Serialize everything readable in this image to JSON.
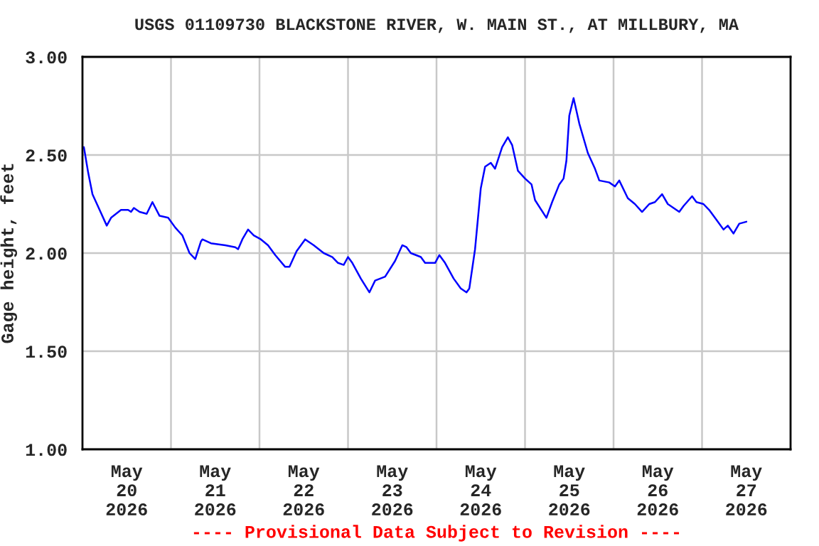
{
  "chart_data": {
    "type": "line",
    "title": "USGS 01109730 BLACKSTONE RIVER, W. MAIN ST., AT MILLBURY, MA",
    "ylabel": "Gage height, feet",
    "annotations": [
      "---- Provisional Data Subject to Revision ----"
    ],
    "x": [
      "2026-05-20T00:23",
      "2026-05-20T01:33",
      "2026-05-20T02:43",
      "2026-05-20T04:39",
      "2026-05-20T06:35",
      "2026-05-20T07:45",
      "2026-05-20T10:27",
      "2026-05-20T12:23",
      "2026-05-20T13:10",
      "2026-05-20T13:56",
      "2026-05-20T15:29",
      "2026-05-20T17:25",
      "2026-05-20T18:58",
      "2026-05-20T20:54",
      "2026-05-20T23:14",
      "2026-05-21T01:10",
      "2026-05-21T03:06",
      "2026-05-21T05:02",
      "2026-05-21T06:35",
      "2026-05-21T08:08",
      "2026-05-21T08:31",
      "2026-05-21T10:50",
      "2026-05-21T14:43",
      "2026-05-21T17:25",
      "2026-05-21T18:12",
      "2026-05-21T19:21",
      "2026-05-21T20:54",
      "2026-05-21T22:27",
      "2026-05-22T00:23",
      "2026-05-22T02:19",
      "2026-05-22T04:16",
      "2026-05-22T06:58",
      "2026-05-22T08:08",
      "2026-05-22T10:04",
      "2026-05-22T12:23",
      "2026-05-22T14:43",
      "2026-05-22T17:25",
      "2026-05-22T19:45",
      "2026-05-22T21:17",
      "2026-05-22T22:50",
      "2026-05-23T00:00",
      "2026-05-23T01:10",
      "2026-05-23T03:29",
      "2026-05-23T05:48",
      "2026-05-23T07:21",
      "2026-05-23T10:04",
      "2026-05-23T12:46",
      "2026-05-23T14:43",
      "2026-05-23T15:52",
      "2026-05-23T17:02",
      "2026-05-23T19:45",
      "2026-05-23T20:54",
      "2026-05-23T23:37",
      "2026-05-24T00:46",
      "2026-05-24T02:19",
      "2026-05-24T04:39",
      "2026-05-24T06:35",
      "2026-05-24T08:08",
      "2026-05-24T08:54",
      "2026-05-24T10:27",
      "2026-05-24T12:00",
      "2026-05-24T13:10",
      "2026-05-24T14:43",
      "2026-05-24T15:52",
      "2026-05-24T17:48",
      "2026-05-24T19:21",
      "2026-05-24T20:31",
      "2026-05-24T22:04",
      "2026-05-25T00:00",
      "2026-05-25T01:46",
      "2026-05-25T02:43",
      "2026-05-25T05:48",
      "2026-05-25T07:21",
      "2026-05-25T09:17",
      "2026-05-25T10:27",
      "2026-05-25T11:13",
      "2026-05-25T12:00",
      "2026-05-25T13:10",
      "2026-05-25T14:43",
      "2026-05-25T17:02",
      "2026-05-25T18:58",
      "2026-05-25T20:08",
      "2026-05-25T22:50",
      "2026-05-26T00:23",
      "2026-05-26T01:33",
      "2026-05-26T03:52",
      "2026-05-26T05:48",
      "2026-05-26T07:44",
      "2026-05-26T09:41",
      "2026-05-26T11:14",
      "2026-05-26T13:10",
      "2026-05-26T14:43",
      "2026-05-26T17:49",
      "2026-05-26T18:59",
      "2026-05-26T21:18",
      "2026-05-26T22:28",
      "2026-05-27T00:23",
      "2026-05-27T01:56",
      "2026-05-27T03:53",
      "2026-05-27T05:49",
      "2026-05-27T06:59",
      "2026-05-27T08:32",
      "2026-05-27T10:05",
      "2026-05-27T12:01"
    ],
    "series": [
      {
        "color": "#0000ff",
        "values": [
          2.54,
          2.41,
          2.3,
          2.22,
          2.14,
          2.18,
          2.22,
          2.22,
          2.21,
          2.23,
          2.21,
          2.2,
          2.26,
          2.19,
          2.18,
          2.13,
          2.09,
          2.0,
          1.97,
          2.06,
          2.07,
          2.05,
          2.04,
          2.03,
          2.02,
          2.07,
          2.12,
          2.09,
          2.07,
          2.04,
          1.99,
          1.93,
          1.93,
          2.01,
          2.07,
          2.04,
          2.0,
          1.98,
          1.95,
          1.94,
          1.98,
          1.95,
          1.87,
          1.8,
          1.86,
          1.88,
          1.96,
          2.04,
          2.03,
          2.0,
          1.98,
          1.95,
          1.95,
          1.99,
          1.95,
          1.87,
          1.82,
          1.8,
          1.82,
          2.02,
          2.33,
          2.44,
          2.46,
          2.43,
          2.54,
          2.59,
          2.55,
          2.42,
          2.38,
          2.35,
          2.27,
          2.18,
          2.26,
          2.35,
          2.38,
          2.47,
          2.7,
          2.79,
          2.66,
          2.51,
          2.43,
          2.37,
          2.36,
          2.34,
          2.37,
          2.28,
          2.25,
          2.21,
          2.25,
          2.26,
          2.3,
          2.25,
          2.21,
          2.24,
          2.29,
          2.26,
          2.25,
          2.22,
          2.17,
          2.12,
          2.14,
          2.1,
          2.15,
          2.16
        ]
      }
    ],
    "xlim": [
      "2026-05-20",
      "2026-05-28"
    ],
    "xticks": [
      {
        "value": "2026-05-20T12:00",
        "label": "May\n20\n2026"
      },
      {
        "value": "2026-05-21",
        "label": null
      },
      {
        "value": "2026-05-21T12:00",
        "label": "May\n21\n2026"
      },
      {
        "value": "2026-05-22",
        "label": null
      },
      {
        "value": "2026-05-22T12:00",
        "label": "May\n22\n2026"
      },
      {
        "value": "2026-05-23",
        "label": null
      },
      {
        "value": "2026-05-23T12:00",
        "label": "May\n23\n2026"
      },
      {
        "value": "2026-05-24",
        "label": null
      },
      {
        "value": "2026-05-24T12:00",
        "label": "May\n24\n2026"
      },
      {
        "value": "2026-05-25",
        "label": null
      },
      {
        "value": "2026-05-25T12:00",
        "label": "May\n25\n2026"
      },
      {
        "value": "2026-05-26",
        "label": null
      },
      {
        "value": "2026-05-26T12:00",
        "label": "May\n26\n2026"
      },
      {
        "value": "2026-05-27",
        "label": null
      },
      {
        "value": "2026-05-27T12:00",
        "label": "May\n27\n2026"
      }
    ],
    "ylim": [
      1.0,
      3.0
    ],
    "yticks": [
      {
        "value": 1.0,
        "label": "1.00"
      },
      {
        "value": 1.5,
        "label": "1.50"
      },
      {
        "value": 2.0,
        "label": "2.00"
      },
      {
        "value": 2.5,
        "label": "2.50"
      },
      {
        "value": 3.0,
        "label": "3.00"
      }
    ],
    "grid": true,
    "legend": false,
    "marker": "none",
    "line_style": "solid"
  }
}
